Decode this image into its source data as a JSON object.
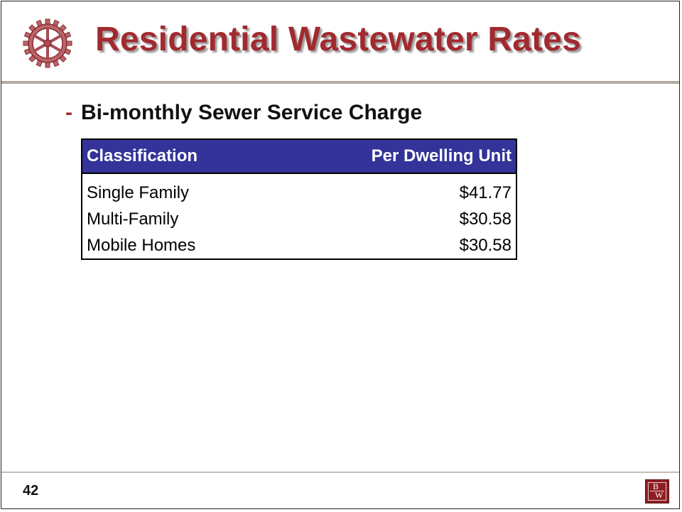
{
  "slide": {
    "title": "Residential Wastewater Rates",
    "bullet": {
      "dash": "-",
      "text": "Bi-monthly Sewer Service Charge"
    },
    "table": {
      "columns": [
        "Classification",
        "Per Dwelling Unit"
      ],
      "rows": [
        [
          "Single Family",
          "$41.77"
        ],
        [
          "Multi-Family",
          "$30.58"
        ],
        [
          "Mobile Homes",
          "$30.58"
        ]
      ]
    },
    "page_number": "42",
    "logo": {
      "letters": [
        "B",
        "W"
      ],
      "icon": "bw-logo-icon"
    },
    "gear_icon": "gear-icon"
  },
  "colors": {
    "title": "#a12a2f",
    "table_header_bg": "#333399",
    "logo_bg": "#8e1d22"
  }
}
